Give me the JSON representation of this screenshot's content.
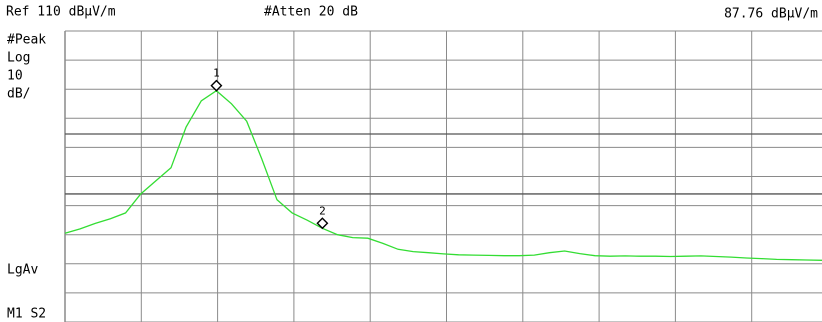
{
  "chart_data": {
    "type": "line",
    "ref_label": "Ref 110 dBμV/m",
    "atten_label": "#Atten 20 dB",
    "marker_readout": "87.76 dBμV/m",
    "side_labels": [
      "#Peak",
      "Log",
      "10",
      "dB/"
    ],
    "avg_label": "LgAv",
    "mode_label": "M1 S2",
    "ylim": [
      10,
      110
    ],
    "yticks": [
      10,
      20,
      30,
      40,
      50,
      60,
      70,
      80,
      90,
      100,
      110
    ],
    "grid": true,
    "display_lines": [
      74.6,
      54
    ],
    "series": [
      {
        "color": "#33dd33",
        "values": [
          40.5,
          42,
          43.9,
          45.5,
          47.5,
          54,
          58.5,
          63,
          77,
          86,
          89.5,
          85,
          79,
          66,
          52,
          47.5,
          45,
          42.2,
          40,
          39,
          38.8,
          37,
          35,
          34.2,
          33.8,
          33.4,
          33.1,
          33,
          32.9,
          32.8,
          32.8,
          33,
          33.8,
          34.4,
          33.5,
          32.8,
          32.6,
          32.7,
          32.6,
          32.6,
          32.5,
          32.6,
          32.7,
          32.5,
          32.3,
          32,
          31.8,
          31.5,
          31.4,
          31.3,
          31.2
        ]
      }
    ],
    "markers": [
      {
        "label": "1",
        "index": 10
      },
      {
        "label": "2",
        "index": 17
      }
    ]
  }
}
